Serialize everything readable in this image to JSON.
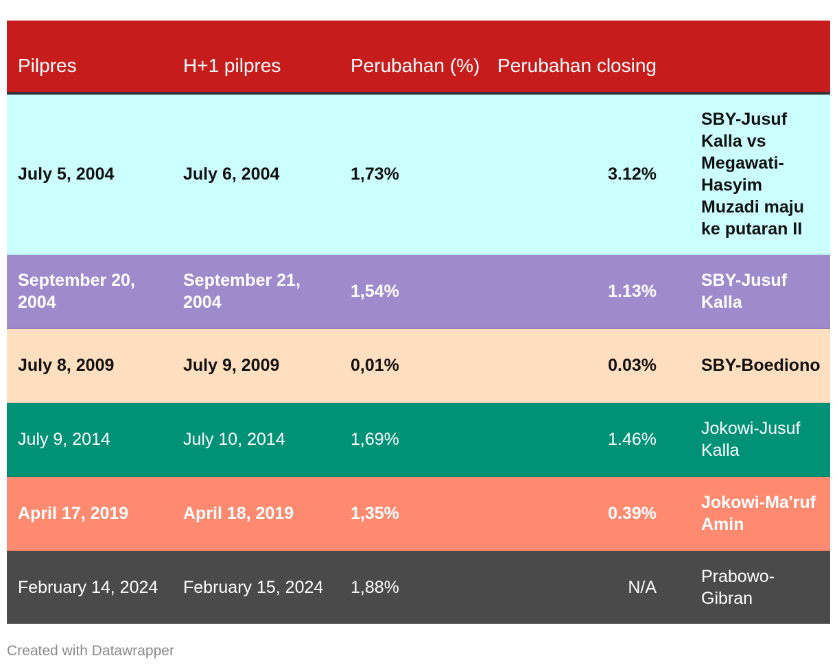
{
  "header": {
    "col1": "Pilpres",
    "col2": "H+1 pilpres",
    "col3": "Perubahan (%)",
    "col4": "Perubahan closing",
    "col5": ""
  },
  "rows": [
    {
      "pilpres": "July 5, 2004",
      "h1": "July 6, 2004",
      "pct": "1,73%",
      "closing": "3.12%",
      "note": "SBY-Jusuf Kalla vs Megawati-Hasyim Muzadi maju ke putaran II",
      "bg": "#ccffff",
      "fg": "#111111"
    },
    {
      "pilpres": "September 20, 2004",
      "h1": "September 21, 2004",
      "pct": "1,54%",
      "closing": "1.13%",
      "note": "SBY-Jusuf Kalla",
      "bg": "#9f8bcc",
      "fg": "#ffffff"
    },
    {
      "pilpres": "July 8, 2009",
      "h1": "July 9, 2009",
      "pct": "0,01%",
      "closing": "0.03%",
      "note": "SBY-Boediono",
      "bg": "#ffdfbf",
      "fg": "#111111"
    },
    {
      "pilpres": "July 9, 2014",
      "h1": "July 10, 2014",
      "pct": "1,69%",
      "closing": "1.46%",
      "note": "Jokowi-Jusuf Kalla",
      "bg": "#009276",
      "fg": "#ffffff"
    },
    {
      "pilpres": "April 17, 2019",
      "h1": "April 18, 2019",
      "pct": "1,35%",
      "closing": "0.39%",
      "note": "Jokowi-Ma'ruf Amin",
      "bg": "#ff8a70",
      "fg": "#ffffff"
    },
    {
      "pilpres": "February 14, 2024",
      "h1": "February 15, 2024",
      "pct": "1,88%",
      "closing": "N/A",
      "note": "Prabowo-Gibran",
      "bg": "#4a4a4a",
      "fg": "#ffffff"
    }
  ],
  "chart_data": {
    "type": "table",
    "columns": [
      "Pilpres",
      "H+1 pilpres",
      "Perubahan (%)",
      "Perubahan closing",
      ""
    ],
    "rows": [
      [
        "July 5, 2004",
        "July 6, 2004",
        "1,73%",
        "3.12%",
        "SBY-Jusuf Kalla vs Megawati-Hasyim Muzadi maju ke putaran II"
      ],
      [
        "September 20, 2004",
        "September 21, 2004",
        "1,54%",
        "1.13%",
        "SBY-Jusuf Kalla"
      ],
      [
        "July 8, 2009",
        "July 9, 2009",
        "0,01%",
        "0.03%",
        "SBY-Boediono"
      ],
      [
        "July 9, 2014",
        "July 10, 2014",
        "1,69%",
        "1.46%",
        "Jokowi-Jusuf Kalla"
      ],
      [
        "April 17, 2019",
        "April 18, 2019",
        "1,35%",
        "0.39%",
        "Jokowi-Ma'ruf Amin"
      ],
      [
        "February 14, 2024",
        "February 15, 2024",
        "1,88%",
        "N/A",
        "Prabowo-Gibran"
      ]
    ]
  },
  "footer": {
    "credit": "Created with Datawrapper"
  }
}
